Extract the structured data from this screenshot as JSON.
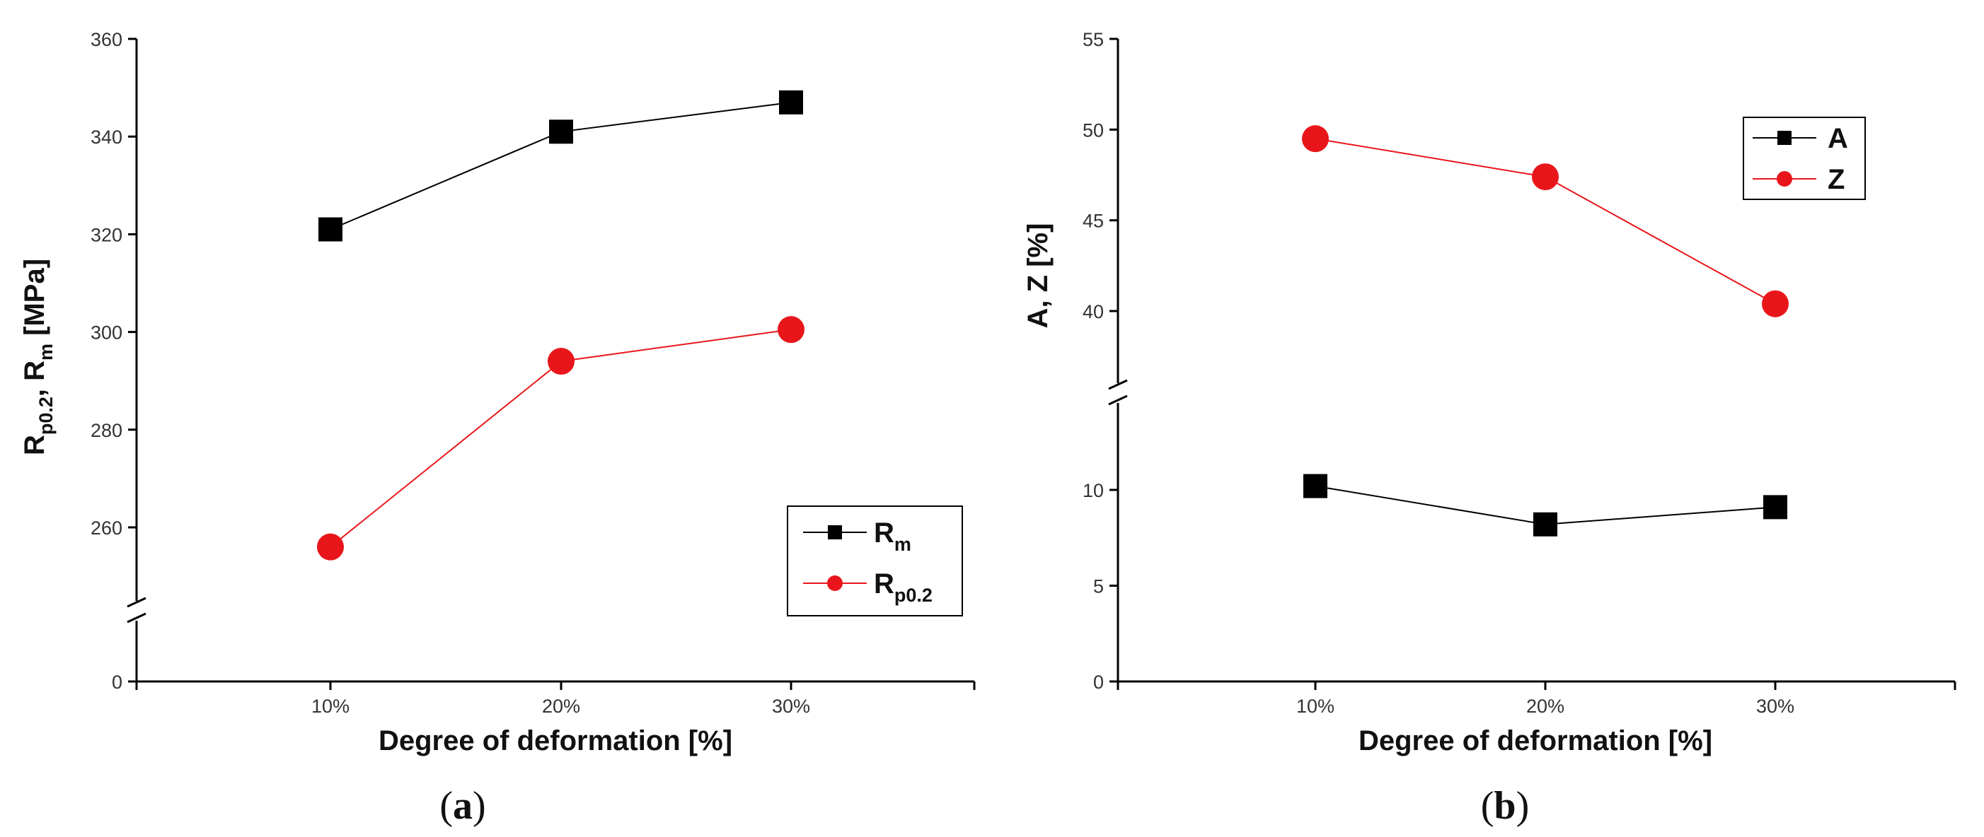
{
  "panels": [
    {
      "label_open": "(",
      "label_letter": "a",
      "label_close": ")"
    },
    {
      "label_open": "(",
      "label_letter": "b",
      "label_close": ")"
    }
  ],
  "chart_data": [
    {
      "type": "line",
      "categories": [
        "10%",
        "20%",
        "30%"
      ],
      "series": [
        {
          "name": "Rm",
          "name_main": "R",
          "name_sub": "m",
          "values": [
            321,
            341,
            347
          ],
          "color": "#000000",
          "marker": "square"
        },
        {
          "name": "Rp0.2",
          "name_main": "R",
          "name_sub": "p0.2",
          "values": [
            256,
            294,
            300.5
          ],
          "color": "#e8161b",
          "marker": "circle"
        }
      ],
      "xlabel": "Degree of deformation [%]",
      "ylabel": {
        "p1": "R",
        "s1": "p0.2",
        "p2": ", R",
        "s2": "m",
        "p3": " [MPa]"
      },
      "ylim": [
        0,
        360
      ],
      "axis_break": [
        0,
        245
      ],
      "yticks": [
        0,
        260,
        280,
        300,
        320,
        340,
        360
      ],
      "legend_position": "bottom-right"
    },
    {
      "type": "line",
      "categories": [
        "10%",
        "20%",
        "30%"
      ],
      "series": [
        {
          "name": "A",
          "values": [
            10.2,
            8.2,
            9.1
          ],
          "color": "#000000",
          "marker": "square"
        },
        {
          "name": "Z",
          "values": [
            49.5,
            47.4,
            40.4
          ],
          "color": "#e8161b",
          "marker": "circle"
        }
      ],
      "xlabel": "Degree of deformation [%]",
      "ylabel": "A, Z [%]",
      "ylim": [
        0,
        55
      ],
      "axis_break": [
        14,
        36
      ],
      "yticks": [
        0,
        5,
        10,
        40,
        45,
        50,
        55
      ],
      "legend_position": "top-right"
    }
  ]
}
